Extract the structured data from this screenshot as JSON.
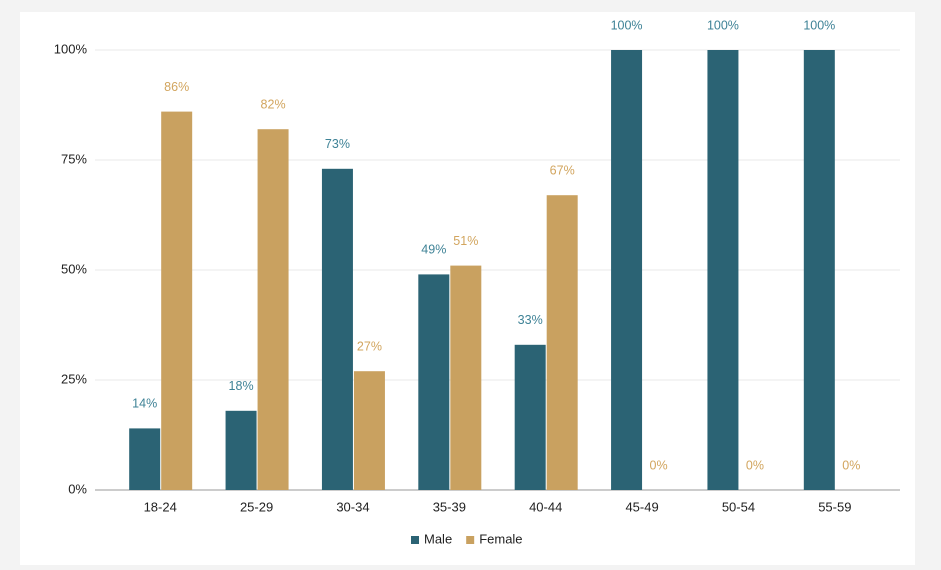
{
  "chart_data": {
    "type": "bar",
    "categories": [
      "18-24",
      "25-29",
      "30-34",
      "35-39",
      "40-44",
      "45-49",
      "50-54",
      "55-59"
    ],
    "series": [
      {
        "name": "Male",
        "color": "#2b6374",
        "label_color": "#3e8296",
        "values": [
          14,
          18,
          73,
          49,
          33,
          100,
          100,
          100
        ],
        "value_labels": [
          "14%",
          "18%",
          "73%",
          "49%",
          "33%",
          "100%",
          "100%",
          "100%"
        ]
      },
      {
        "name": "Female",
        "color": "#c9a160",
        "label_color": "#d2a55e",
        "values": [
          86,
          82,
          27,
          51,
          67,
          0,
          0,
          0
        ],
        "value_labels": [
          "86%",
          "82%",
          "27%",
          "51%",
          "67%",
          "0%",
          "0%",
          "0%"
        ]
      }
    ],
    "ylim": [
      0,
      100
    ],
    "yticks": [
      {
        "value": 0,
        "label": "0%"
      },
      {
        "value": 25,
        "label": "25%"
      },
      {
        "value": 50,
        "label": "50%"
      },
      {
        "value": 75,
        "label": "75%"
      },
      {
        "value": 100,
        "label": "100%"
      }
    ],
    "grid": true,
    "legend": "bottom"
  }
}
